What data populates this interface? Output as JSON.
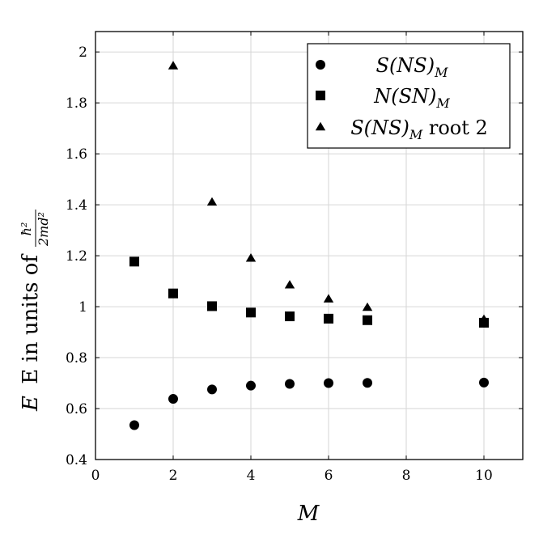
{
  "chart_data": {
    "type": "scatter",
    "xlabel": "M",
    "ylabel_prefix": "E in units of",
    "ylabel_fraction": {
      "numerator": "ħ²",
      "denominator": "2md²"
    },
    "xlim": [
      0,
      11
    ],
    "ylim": [
      0.4,
      2.08
    ],
    "xticks": [
      0,
      2,
      4,
      6,
      8,
      10
    ],
    "xtick_labels": [
      "0",
      "2",
      "4",
      "6",
      "8",
      "10"
    ],
    "yticks": [
      0.4,
      0.6,
      0.8,
      1.0,
      1.2,
      1.4,
      1.6,
      1.8,
      2.0
    ],
    "ytick_labels": [
      "0.4",
      "0.6",
      "0.8",
      "1",
      "1.2",
      "1.4",
      "1.6",
      "1.8",
      "2"
    ],
    "grid": true,
    "legend_position": "top-right",
    "series": [
      {
        "name": "S(NS)_M",
        "legend": {
          "base": "S(NS)",
          "sub": "M",
          "suffix": ""
        },
        "marker": "circle",
        "color": "#000000",
        "x": [
          1,
          2,
          3,
          4,
          5,
          6,
          7,
          10
        ],
        "y": [
          0.535,
          0.638,
          0.675,
          0.69,
          0.697,
          0.7,
          0.701,
          0.702
        ]
      },
      {
        "name": "N(SN)_M",
        "legend": {
          "base": "N(SN)",
          "sub": "M",
          "suffix": ""
        },
        "marker": "square",
        "color": "#000000",
        "x": [
          1,
          2,
          3,
          4,
          5,
          6,
          7,
          10
        ],
        "y": [
          1.177,
          1.052,
          1.002,
          0.977,
          0.962,
          0.953,
          0.947,
          0.937
        ]
      },
      {
        "name": "S(NS)_M root 2",
        "legend": {
          "base": "S(NS)",
          "sub": "M",
          "suffix": " root 2"
        },
        "marker": "triangle",
        "color": "#000000",
        "x": [
          2,
          3,
          4,
          5,
          6,
          7,
          10
        ],
        "y": [
          1.945,
          1.41,
          1.19,
          1.085,
          1.03,
          0.997,
          0.95
        ]
      }
    ]
  }
}
